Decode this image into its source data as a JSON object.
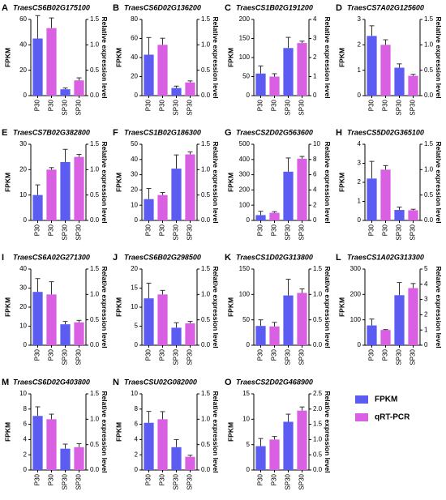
{
  "chart_data": [
    {
      "type": "bar",
      "label": "A",
      "title": "TraesCS6B02G175100",
      "ylabel": "FPKM",
      "y2label": "Relative expression level",
      "categories": [
        "P30",
        "P30",
        "SP30",
        "SP30"
      ],
      "ylim": [
        0,
        60
      ],
      "yticks": [
        0,
        20,
        40,
        60
      ],
      "y2lim": [
        0,
        1.5
      ],
      "y2ticks": [
        {
          "value": 0,
          "label": "0.0"
        },
        0.5,
        {
          "value": 1,
          "label": "1.0"
        },
        1.5
      ],
      "series": [
        {
          "name": "FPKM",
          "color": "#5c5cf2",
          "values": [
            45,
            null,
            5,
            null
          ],
          "errors": [
            18,
            null,
            1,
            null
          ]
        },
        {
          "name": "qRT-PCR",
          "color": "#d95fe3",
          "axis": "y2",
          "values": [
            null,
            1.33,
            null,
            0.3
          ],
          "errors": [
            null,
            0.2,
            null,
            0.05
          ]
        }
      ]
    },
    {
      "type": "bar",
      "label": "B",
      "title": "TraesCS6D02G136200",
      "ylabel": "FPKM",
      "y2label": "Relative expression level",
      "categories": [
        "P30",
        "P30",
        "SP30",
        "SP30"
      ],
      "ylim": [
        0,
        80
      ],
      "yticks": [
        0,
        20,
        40,
        60,
        80
      ],
      "y2lim": [
        0,
        1.5
      ],
      "y2ticks": [
        {
          "value": 0,
          "label": "0.0"
        },
        0.5,
        {
          "value": 1,
          "label": "1.0"
        },
        1.5
      ],
      "series": [
        {
          "name": "FPKM",
          "color": "#5c5cf2",
          "values": [
            43,
            null,
            8,
            null
          ],
          "errors": [
            18,
            null,
            2,
            null
          ]
        },
        {
          "name": "qRT-PCR",
          "color": "#d95fe3",
          "axis": "y2",
          "values": [
            null,
            1.0,
            null,
            0.26
          ],
          "errors": [
            null,
            0.13,
            null,
            0.03
          ]
        }
      ]
    },
    {
      "type": "bar",
      "label": "C",
      "title": "TraesCS1B02G191200",
      "ylabel": "FPKM",
      "y2label": "Relative expression level",
      "categories": [
        "P30",
        "P30",
        "SP30",
        "SP30"
      ],
      "ylim": [
        0,
        200
      ],
      "yticks": [
        0,
        50,
        100,
        150,
        200
      ],
      "y2lim": [
        0,
        4
      ],
      "y2ticks": [
        0,
        1,
        2,
        3,
        4
      ],
      "series": [
        {
          "name": "FPKM",
          "color": "#5c5cf2",
          "values": [
            58,
            null,
            125,
            null
          ],
          "errors": [
            20,
            null,
            28,
            null
          ]
        },
        {
          "name": "qRT-PCR",
          "color": "#d95fe3",
          "axis": "y2",
          "values": [
            null,
            1.0,
            null,
            2.76
          ],
          "errors": [
            null,
            0.15,
            null,
            0.1
          ]
        }
      ]
    },
    {
      "type": "bar",
      "label": "D",
      "title": "TraesCS7A02G125600",
      "ylabel": "FPKM",
      "y2label": "Relative expression level",
      "categories": [
        "P30",
        "P30",
        "SP30",
        "SP30"
      ],
      "ylim": [
        0,
        3
      ],
      "yticks": [
        0,
        1,
        2,
        3
      ],
      "y2lim": [
        0,
        1.5
      ],
      "y2ticks": [
        {
          "value": 0,
          "label": "0.0"
        },
        0.5,
        {
          "value": 1,
          "label": "1.0"
        },
        1.5
      ],
      "series": [
        {
          "name": "FPKM",
          "color": "#5c5cf2",
          "values": [
            2.35,
            null,
            1.1,
            null
          ],
          "errors": [
            0.4,
            null,
            0.15,
            null
          ]
        },
        {
          "name": "qRT-PCR",
          "color": "#d95fe3",
          "axis": "y2",
          "values": [
            null,
            1.0,
            null,
            0.39
          ],
          "errors": [
            null,
            0.1,
            null,
            0.03
          ]
        }
      ]
    },
    {
      "type": "bar",
      "label": "E",
      "title": "TraesCS7B02G382800",
      "ylabel": "FPKM",
      "y2label": "Relative expression level",
      "categories": [
        "P30",
        "P30",
        "SP30",
        "SP30"
      ],
      "ylim": [
        0,
        30
      ],
      "yticks": [
        0,
        10,
        20,
        30
      ],
      "y2lim": [
        0,
        1.5
      ],
      "y2ticks": [
        {
          "value": 0,
          "label": "0.0"
        },
        0.5,
        {
          "value": 1,
          "label": "1.0"
        },
        1.5
      ],
      "series": [
        {
          "name": "FPKM",
          "color": "#5c5cf2",
          "values": [
            10,
            null,
            23,
            null
          ],
          "errors": [
            4,
            null,
            5,
            null
          ]
        },
        {
          "name": "qRT-PCR",
          "color": "#d95fe3",
          "axis": "y2",
          "values": [
            null,
            1.0,
            null,
            1.25
          ],
          "errors": [
            null,
            0.04,
            null,
            0.05
          ]
        }
      ]
    },
    {
      "type": "bar",
      "label": "F",
      "title": "TraesCS1B02G186300",
      "ylabel": "FPKM",
      "y2label": "Relative expression level",
      "categories": [
        "P30",
        "P30",
        "SP30",
        "SP30"
      ],
      "ylim": [
        0,
        50
      ],
      "yticks": [
        0,
        10,
        20,
        30,
        40,
        50
      ],
      "y2lim": [
        0,
        1.5
      ],
      "y2ticks": [
        {
          "value": 0,
          "label": "0.0"
        },
        0.5,
        {
          "value": 1,
          "label": "1.0"
        },
        1.5
      ],
      "series": [
        {
          "name": "FPKM",
          "color": "#5c5cf2",
          "values": [
            14,
            null,
            34,
            null
          ],
          "errors": [
            7,
            null,
            9,
            null
          ]
        },
        {
          "name": "qRT-PCR",
          "color": "#d95fe3",
          "axis": "y2",
          "values": [
            null,
            0.5,
            null,
            1.3
          ],
          "errors": [
            null,
            0.05,
            null,
            0.05
          ]
        }
      ]
    },
    {
      "type": "bar",
      "label": "G",
      "title": "TraesCS2D02G563600",
      "ylabel": "FPKM",
      "y2label": "Relative expression level",
      "categories": [
        "P30",
        "P30",
        "SP30",
        "SP30"
      ],
      "ylim": [
        0,
        500
      ],
      "yticks": [
        0,
        100,
        200,
        300,
        400,
        500
      ],
      "y2lim": [
        0,
        10
      ],
      "y2ticks": [
        0,
        2,
        4,
        6,
        8,
        10
      ],
      "series": [
        {
          "name": "FPKM",
          "color": "#5c5cf2",
          "values": [
            35,
            null,
            320,
            null
          ],
          "errors": [
            25,
            null,
            90,
            null
          ]
        },
        {
          "name": "qRT-PCR",
          "color": "#d95fe3",
          "axis": "y2",
          "values": [
            null,
            1.0,
            null,
            8.1
          ],
          "errors": [
            null,
            0.15,
            null,
            0.3
          ]
        }
      ]
    },
    {
      "type": "bar",
      "label": "H",
      "title": "TraesCS5D02G365100",
      "ylabel": "FPKM",
      "y2label": "Relative expression level",
      "categories": [
        "P30",
        "P30",
        "SP30",
        "SP30"
      ],
      "ylim": [
        0,
        4
      ],
      "yticks": [
        0,
        1,
        2,
        3,
        4
      ],
      "y2lim": [
        0,
        1.5
      ],
      "y2ticks": [
        {
          "value": 0,
          "label": "0.0"
        },
        0.5,
        {
          "value": 1,
          "label": "1.0"
        },
        1.5
      ],
      "series": [
        {
          "name": "FPKM",
          "color": "#5c5cf2",
          "values": [
            2.2,
            null,
            0.55,
            null
          ],
          "errors": [
            0.9,
            null,
            0.15,
            null
          ]
        },
        {
          "name": "qRT-PCR",
          "color": "#d95fe3",
          "axis": "y2",
          "values": [
            null,
            1.0,
            null,
            0.2
          ],
          "errors": [
            null,
            0.08,
            null,
            0.02
          ]
        }
      ]
    },
    {
      "type": "bar",
      "label": "I",
      "title": "TraesCS6A02G271300",
      "ylabel": "FPKM",
      "y2label": "Relative expression level",
      "categories": [
        "P30",
        "P30",
        "SP30",
        "SP30"
      ],
      "ylim": [
        0,
        40
      ],
      "yticks": [
        0,
        10,
        20,
        30,
        40
      ],
      "y2lim": [
        0,
        1.5
      ],
      "y2ticks": [
        {
          "value": 0,
          "label": "0.0"
        },
        0.5,
        {
          "value": 1,
          "label": "1.0"
        },
        1.5
      ],
      "series": [
        {
          "name": "FPKM",
          "color": "#5c5cf2",
          "values": [
            28,
            null,
            11,
            null
          ],
          "errors": [
            7,
            null,
            1.5,
            null
          ]
        },
        {
          "name": "qRT-PCR",
          "color": "#d95fe3",
          "axis": "y2",
          "values": [
            null,
            1.0,
            null,
            0.45
          ],
          "errors": [
            null,
            0.25,
            null,
            0.04
          ]
        }
      ]
    },
    {
      "type": "bar",
      "label": "J",
      "title": "TraesCS6B02G298500",
      "ylabel": "FPKM",
      "y2label": "Relative expression level",
      "categories": [
        "P30",
        "P30",
        "SP30",
        "SP30"
      ],
      "ylim": [
        0,
        20
      ],
      "yticks": [
        0,
        5,
        10,
        15,
        20
      ],
      "y2lim": [
        0,
        1.5
      ],
      "y2ticks": [
        {
          "value": 0,
          "label": "0.0"
        },
        0.5,
        {
          "value": 1,
          "label": "1.0"
        },
        1.5
      ],
      "series": [
        {
          "name": "FPKM",
          "color": "#5c5cf2",
          "values": [
            12.3,
            null,
            4.6,
            null
          ],
          "errors": [
            4,
            null,
            1.3,
            null
          ]
        },
        {
          "name": "qRT-PCR",
          "color": "#d95fe3",
          "axis": "y2",
          "values": [
            null,
            1.0,
            null,
            0.43
          ],
          "errors": [
            null,
            0.08,
            null,
            0.04
          ]
        }
      ]
    },
    {
      "type": "bar",
      "label": "K",
      "title": "TraesCS1D02G313800",
      "ylabel": "FPKM",
      "y2label": "Relative expression level",
      "categories": [
        "P30",
        "P30",
        "SP30",
        "SP30"
      ],
      "ylim": [
        0,
        150
      ],
      "yticks": [
        0,
        50,
        100,
        150
      ],
      "y2lim": [
        0,
        1.5
      ],
      "y2ticks": [
        {
          "value": 0,
          "label": "0.0"
        },
        0.5,
        {
          "value": 1,
          "label": "1.0"
        },
        1.5
      ],
      "series": [
        {
          "name": "FPKM",
          "color": "#5c5cf2",
          "values": [
            38,
            null,
            98,
            null
          ],
          "errors": [
            12,
            null,
            32,
            null
          ]
        },
        {
          "name": "qRT-PCR",
          "color": "#d95fe3",
          "axis": "y2",
          "values": [
            null,
            0.37,
            null,
            1.03
          ],
          "errors": [
            null,
            0.08,
            null,
            0.08
          ]
        }
      ]
    },
    {
      "type": "bar",
      "label": "L",
      "title": "TraesCS1A02G313300",
      "ylabel": "FPKM",
      "y2label": "Relative expression level",
      "categories": [
        "P30",
        "P30",
        "SP30",
        "SP30"
      ],
      "ylim": [
        0,
        300
      ],
      "yticks": [
        0,
        100,
        200,
        300
      ],
      "y2lim": [
        0,
        5
      ],
      "y2ticks": [
        0,
        1,
        2,
        3,
        4,
        5
      ],
      "series": [
        {
          "name": "FPKM",
          "color": "#5c5cf2",
          "values": [
            78,
            null,
            197,
            null
          ],
          "errors": [
            25,
            null,
            50,
            null
          ]
        },
        {
          "name": "qRT-PCR",
          "color": "#d95fe3",
          "axis": "y2",
          "values": [
            null,
            1.0,
            null,
            3.75
          ],
          "errors": [
            null,
            0.03,
            null,
            0.3
          ]
        }
      ]
    },
    {
      "type": "bar",
      "label": "M",
      "title": "TraesCS6D02G403800",
      "ylabel": "FPKM",
      "y2label": "Relative expression level",
      "categories": [
        "P30",
        "P30",
        "SP30",
        "SP30"
      ],
      "ylim": [
        0,
        10
      ],
      "yticks": [
        0,
        2,
        4,
        6,
        8,
        10
      ],
      "y2lim": [
        0,
        1.5
      ],
      "y2ticks": [
        {
          "value": 0,
          "label": "0.0"
        },
        0.5,
        {
          "value": 1,
          "label": "1.0"
        },
        1.5
      ],
      "series": [
        {
          "name": "FPKM",
          "color": "#5c5cf2",
          "values": [
            7.1,
            null,
            2.8,
            null
          ],
          "errors": [
            1.2,
            null,
            0.6,
            null
          ]
        },
        {
          "name": "qRT-PCR",
          "color": "#d95fe3",
          "axis": "y2",
          "values": [
            null,
            1.0,
            null,
            0.45
          ],
          "errors": [
            null,
            0.1,
            null,
            0.07
          ]
        }
      ]
    },
    {
      "type": "bar",
      "label": "N",
      "title": "TraesCSU02G082000",
      "ylabel": "FPKM",
      "y2label": "Relative expression level",
      "categories": [
        "P30",
        "P30",
        "SP30",
        "SP30"
      ],
      "ylim": [
        0,
        10
      ],
      "yticks": [
        0,
        2,
        4,
        6,
        8,
        10
      ],
      "y2lim": [
        0,
        1.5
      ],
      "y2ticks": [
        {
          "value": 0,
          "label": "0.0"
        },
        0.5,
        {
          "value": 1,
          "label": "1.0"
        },
        1.5
      ],
      "series": [
        {
          "name": "FPKM",
          "color": "#5c5cf2",
          "values": [
            6.2,
            null,
            3.0,
            null
          ],
          "errors": [
            1.5,
            null,
            1.0,
            null
          ]
        },
        {
          "name": "qRT-PCR",
          "color": "#d95fe3",
          "axis": "y2",
          "values": [
            null,
            1.0,
            null,
            0.26
          ],
          "errors": [
            null,
            0.15,
            null,
            0.03
          ]
        }
      ]
    },
    {
      "type": "bar",
      "label": "O",
      "title": "TraesCS2D02G468900",
      "ylabel": "FPKM",
      "y2label": "Relative expression level",
      "categories": [
        "P30",
        "P30",
        "SP30",
        "SP30"
      ],
      "ylim": [
        0,
        15
      ],
      "yticks": [
        0,
        5,
        10,
        15
      ],
      "y2lim": [
        0,
        2.5
      ],
      "y2ticks": [
        {
          "value": 0,
          "label": "0.0"
        },
        0.5,
        {
          "value": 1,
          "label": "1.0"
        },
        1.5,
        {
          "value": 2,
          "label": "2.0"
        },
        2.5
      ],
      "series": [
        {
          "name": "FPKM",
          "color": "#5c5cf2",
          "values": [
            4.7,
            null,
            9.5,
            null
          ],
          "errors": [
            1.5,
            null,
            1.5,
            null
          ]
        },
        {
          "name": "qRT-PCR",
          "color": "#d95fe3",
          "axis": "y2",
          "values": [
            null,
            1.0,
            null,
            1.95
          ],
          "errors": [
            null,
            0.1,
            null,
            0.12
          ]
        }
      ]
    }
  ]
}
